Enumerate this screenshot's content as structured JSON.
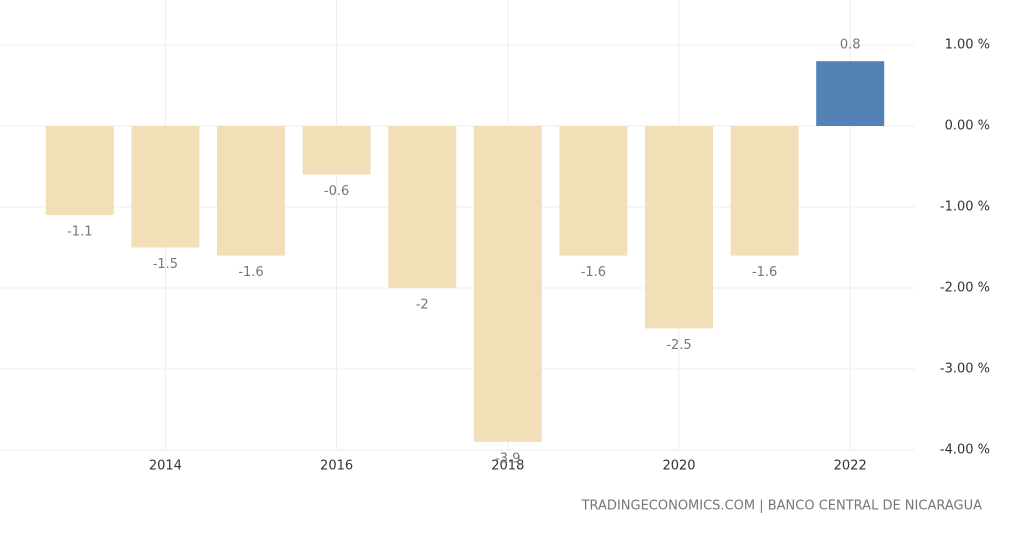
{
  "chart_data": {
    "type": "bar",
    "categories": [
      null,
      "2014",
      null,
      "2016",
      null,
      "2018",
      null,
      "2020",
      null,
      "2022"
    ],
    "values": [
      -1.1,
      -1.5,
      -1.6,
      -0.6,
      -2,
      -3.9,
      -1.6,
      -2.5,
      -1.6,
      0.8
    ],
    "colors": [
      "#f2dfb8",
      "#f2dfb8",
      "#f2dfb8",
      "#f2dfb8",
      "#f2dfb8",
      "#f2dfb8",
      "#f2dfb8",
      "#f2dfb8",
      "#f2dfb8",
      "#5383b6"
    ],
    "ylim": [
      -4,
      1
    ],
    "yticks": [
      {
        "value": 1,
        "label": "1.00 %"
      },
      {
        "value": 0,
        "label": "0.00 %"
      },
      {
        "value": -1,
        "label": "-1.00 %"
      },
      {
        "value": -2,
        "label": "-2.00 %"
      },
      {
        "value": -3,
        "label": "-3.00 %"
      },
      {
        "value": -4,
        "label": "-4.00 %"
      }
    ],
    "grid": true,
    "source": "TRADINGECONOMICS.COM | BANCO CENTRAL DE NICARAGUA"
  }
}
